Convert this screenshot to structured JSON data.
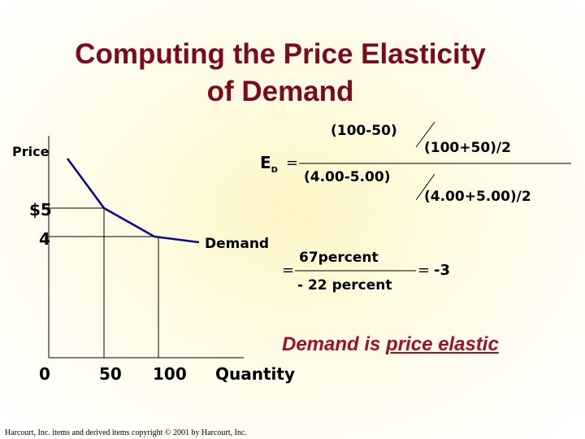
{
  "slide": {
    "title_line1": "Computing the Price Elasticity",
    "title_line2": "of Demand",
    "footer": "Harcourt, Inc. items and derived items copyright © 2001 by Harcourt, Inc."
  },
  "graph": {
    "y_axis_label": "Price",
    "x_axis_label": "Quantity",
    "price_high_label": "$5",
    "price_low_label": "4",
    "x_origin_label": "0",
    "x_tick_50": "50",
    "x_tick_100": "100",
    "curve_label": "Demand",
    "points": [
      {
        "quantity": 50,
        "price": 5
      },
      {
        "quantity": 100,
        "price": 4
      }
    ],
    "curve_color": "#0a0a8c"
  },
  "formula": {
    "e_symbol": "E",
    "e_subscript": "D",
    "eq1": "=",
    "num_top": "(100-50)",
    "num_bottom": "(100+50)/2",
    "den_top": "(4.00-5.00)",
    "den_bottom": "(4.00+5.00)/2",
    "eq2": "=",
    "frac_num_value": "67",
    "frac_num_unit": "percent",
    "frac_den_value": "- 22",
    "frac_den_unit": "percent",
    "eq3": "=",
    "result": "-3"
  },
  "conclusion": {
    "prefix": "Demand is ",
    "emphasis": "price elastic"
  },
  "colors": {
    "title": "#7a0a1c",
    "conclusion": "#a0102a",
    "curve": "#0a0a8c"
  }
}
